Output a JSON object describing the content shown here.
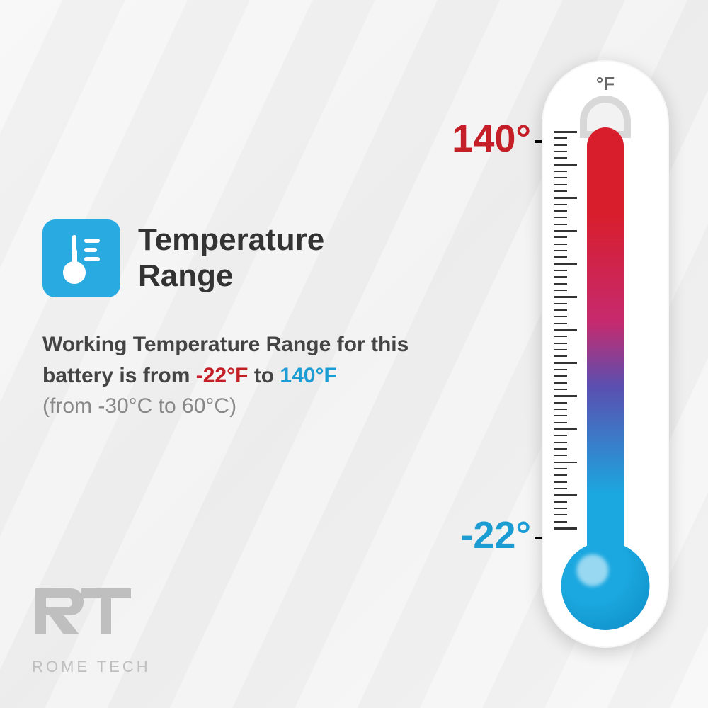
{
  "title": "Temperature Range",
  "description": {
    "prefix": "Working Temperature Range for this battery is from ",
    "cold_f": "-22°F",
    "mid": " to ",
    "hot_f": "140°F",
    "celsius": "(from -30°C to 60°C)"
  },
  "thermometer": {
    "unit": "°F",
    "hot_label": "140°",
    "cold_label": "-22°",
    "gradient_top": "#d81e2c",
    "gradient_mid1": "#c62a6e",
    "gradient_mid2": "#5a4fb0",
    "gradient_bottom": "#1ba8e0",
    "bulb_color": "#1ba8e0",
    "bulb_dark": "#0d8bc4",
    "tick_count_major": 12,
    "tick_minor_per_major": 4
  },
  "icon": {
    "bg_color": "#29abe2",
    "fg_color": "#ffffff"
  },
  "colors": {
    "title": "#333333",
    "text": "#444444",
    "cold": "#c41e26",
    "hot": "#1b9dd4",
    "sub": "#888888",
    "logo": "#bfbfbf",
    "unit": "#666666"
  },
  "logo": {
    "mark": "RT",
    "name": "ROME TECH"
  }
}
